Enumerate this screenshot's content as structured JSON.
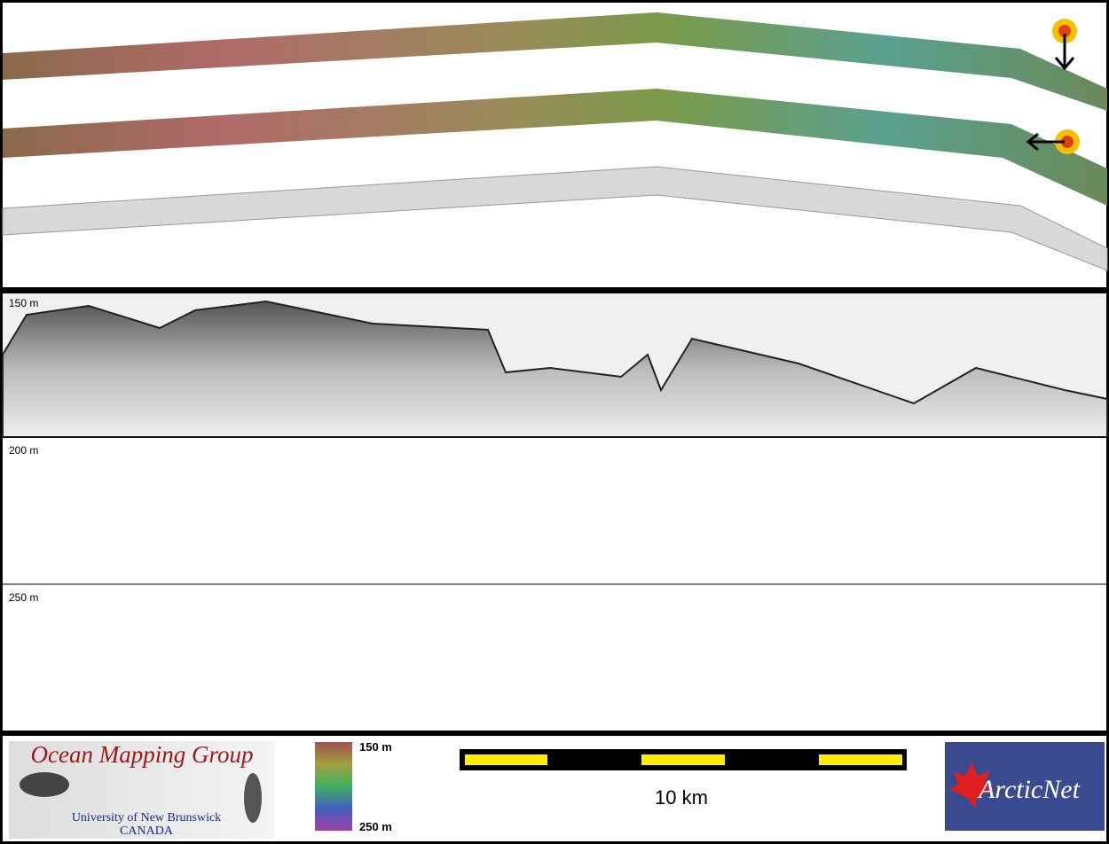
{
  "profile": {
    "depth_labels": [
      "150 m",
      "200 m",
      "250 m"
    ]
  },
  "footer": {
    "logo": {
      "title": "Ocean Mapping Group",
      "university": "University of New Brunswick",
      "country": "CANADA"
    },
    "colorbar": {
      "top_label": "150 m",
      "bottom_label": "250 m"
    },
    "scale_bar": {
      "label": "10 km"
    },
    "partner": {
      "name": "ArcticNet"
    }
  }
}
